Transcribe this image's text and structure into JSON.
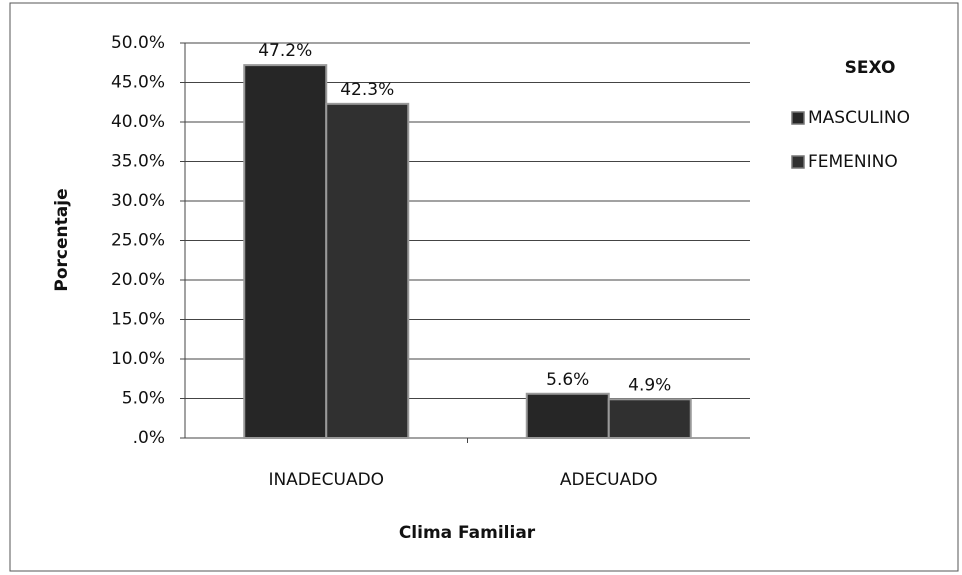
{
  "chart_data": {
    "type": "bar",
    "x_label": "Clima Familiar",
    "y_label": "Porcentaje",
    "legend_title": "SEXO",
    "categories": [
      "INADECUADO",
      "ADECUADO"
    ],
    "series": [
      {
        "name": "MASCULINO",
        "color": "#262626",
        "values": [
          47.2,
          5.6
        ],
        "value_labels": [
          "47.2%",
          "5.6%"
        ]
      },
      {
        "name": "FEMENINO",
        "color": "#303030",
        "values": [
          42.3,
          4.9
        ],
        "value_labels": [
          "42.3%",
          "4.9%"
        ]
      }
    ],
    "ylim": [
      0,
      50
    ],
    "yticks": [
      {
        "value": 0,
        "label": ".0%"
      },
      {
        "value": 5,
        "label": "5.0%"
      },
      {
        "value": 10,
        "label": "10.0%"
      },
      {
        "value": 15,
        "label": "15.0%"
      },
      {
        "value": 20,
        "label": "20.0%"
      },
      {
        "value": 25,
        "label": "25.0%"
      },
      {
        "value": 30,
        "label": "30.0%"
      },
      {
        "value": 35,
        "label": "35.0%"
      },
      {
        "value": 40,
        "label": "40.0%"
      },
      {
        "value": 45,
        "label": "45.0%"
      },
      {
        "value": 50,
        "label": "50.0%"
      }
    ],
    "grid": true,
    "legend_position": "right"
  }
}
